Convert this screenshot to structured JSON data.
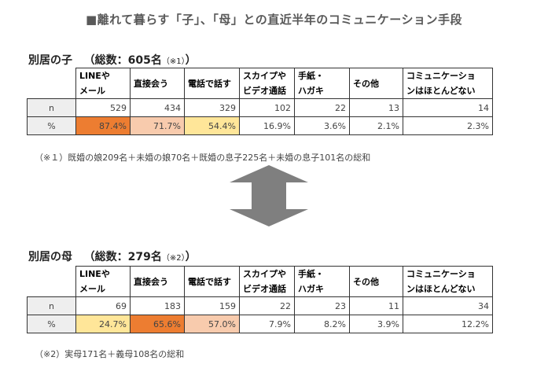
{
  "title": "■離れて暮らす「子」、「母」との直近半年のコミュニケーション手段",
  "columns": [
    [
      "LINEや",
      "メール"
    ],
    [
      "直接会う"
    ],
    [
      "電話で話す"
    ],
    [
      "スカイプや",
      "ビデオ通話"
    ],
    [
      "手紙・",
      "ハガキ"
    ],
    [
      "その他"
    ],
    [
      "コミュニケーショ",
      "ンはほとんどない"
    ]
  ],
  "section1": {
    "label": "別居の子",
    "total": "（総数：605名",
    "note_ref": "（※1）",
    "close": "）",
    "rows": [
      {
        "label": "n",
        "values": [
          "529",
          "434",
          "329",
          "102",
          "22",
          "13",
          "14"
        ]
      },
      {
        "label": "%",
        "values": [
          "87.4%",
          "71.7%",
          "54.4%",
          "16.9%",
          "3.6%",
          "2.1%",
          "2.3%"
        ]
      }
    ],
    "highlight_colors": [
      "#ed7d31",
      "#f8cbad",
      "#ffe699",
      "",
      "",
      "",
      ""
    ],
    "footnote": "（※１）既婚の娘209名＋未婚の娘70名＋既婚の息子225名＋未婚の息子101名の総和"
  },
  "section2": {
    "label": "別居の母",
    "total": "（総数：279名",
    "note_ref": "（※2）",
    "close": "）",
    "rows": [
      {
        "label": "n",
        "values": [
          "69",
          "183",
          "159",
          "22",
          "23",
          "11",
          "34"
        ]
      },
      {
        "label": "%",
        "values": [
          "24.7%",
          "65.6%",
          "57.0%",
          "7.9%",
          "8.2%",
          "3.9%",
          "12.2%"
        ]
      }
    ],
    "highlight_colors": [
      "#ffe699",
      "#ed7d31",
      "#f8cbad",
      "",
      "",
      "",
      ""
    ],
    "footnote": "（※2）実母171名＋義母108名の総和"
  },
  "arrow_icon": "double-arrow-up-down-icon",
  "arrow_color": "#7f7f7f"
}
